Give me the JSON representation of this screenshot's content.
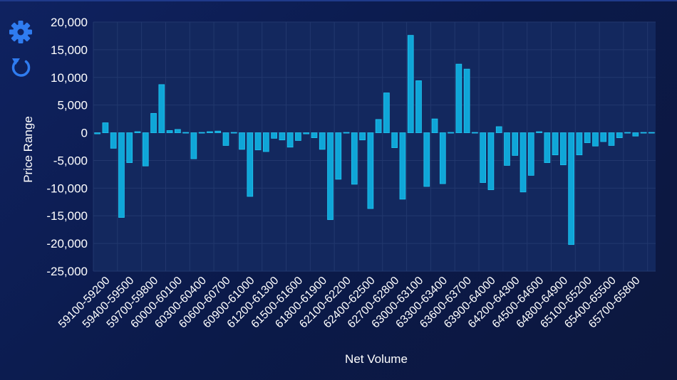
{
  "toolbar": {
    "settings_icon": "gear-icon",
    "reset_icon": "refresh-icon",
    "accent": "#2f7cf0"
  },
  "colors": {
    "bar_fill": "#0fa6d8",
    "bar_stroke": "#22c6f2",
    "plot_bg": "#13285e",
    "grid": "#22386e"
  },
  "chart_data": {
    "type": "bar",
    "title": "",
    "xlabel": "Net Volume",
    "ylabel": "Price Range",
    "ylim": [
      -25000,
      20000
    ],
    "yticks": [
      20000,
      15000,
      10000,
      5000,
      0,
      -5000,
      -10000,
      -15000,
      -20000,
      -25000
    ],
    "ytick_labels": [
      "20,000",
      "15,000",
      "10,000",
      "5,000",
      "0",
      "-5,000",
      "-10,000",
      "-15,000",
      "-20,000",
      "-25,000"
    ],
    "categories": [
      "59000-59100",
      "59100-59200",
      "59200-59300",
      "59300-59400",
      "59400-59500",
      "59500-59600",
      "59600-59700",
      "59700-59800",
      "59800-59900",
      "59900-60000",
      "60000-60100",
      "60100-60200",
      "60200-60300",
      "60300-60400",
      "60400-60500",
      "60500-60600",
      "60600-60700",
      "60700-60800",
      "60800-60900",
      "60900-61000",
      "61000-61100",
      "61100-61200",
      "61200-61300",
      "61300-61400",
      "61400-61500",
      "61500-61600",
      "61600-61700",
      "61700-61800",
      "61800-61900",
      "61900-62000",
      "62000-62100",
      "62100-62200",
      "62200-62300",
      "62300-62400",
      "62400-62500",
      "62500-62600",
      "62600-62700",
      "62700-62800",
      "62800-62900",
      "62900-63000",
      "63000-63100",
      "63100-63200",
      "63200-63300",
      "63300-63400",
      "63400-63500",
      "63500-63600",
      "63600-63700",
      "63700-63800",
      "63800-63900",
      "63900-64000",
      "64000-64100",
      "64100-64200",
      "64200-64300",
      "64300-64400",
      "64400-64500",
      "64500-64600",
      "64600-64700",
      "64700-64800",
      "64800-64900",
      "64900-65000",
      "65000-65100",
      "65100-65200",
      "65200-65300",
      "65300-65400",
      "65400-65500",
      "65500-65600",
      "65600-65700",
      "65700-65800",
      "65800-65900",
      "65900-66000"
    ],
    "visible_tick_labels": [
      "59100-59200",
      "59400-59500",
      "59700-59800",
      "60000-60100",
      "60300-60400",
      "60600-60700",
      "60900-61000",
      "61200-61300",
      "61500-61600",
      "61800-61900",
      "62100-62200",
      "62400-62500",
      "62700-62800",
      "63000-63100",
      "63300-63400",
      "63600-63700",
      "63900-64000",
      "64200-64300",
      "64500-64600",
      "64800-64900",
      "65100-65200",
      "65400-65500",
      "65700-65800"
    ],
    "values": [
      -200,
      1800,
      -2800,
      -15300,
      -5400,
      200,
      -6000,
      3500,
      8700,
      400,
      600,
      0,
      -4700,
      0,
      200,
      300,
      -2300,
      0,
      -3000,
      -11500,
      -3100,
      -3400,
      -1000,
      -1300,
      -2600,
      -1400,
      -200,
      -900,
      -3000,
      -15700,
      -8400,
      0,
      -9300,
      -1300,
      -13700,
      2400,
      7200,
      -2700,
      -12000,
      17600,
      9400,
      -9700,
      2500,
      -9200,
      0,
      12400,
      11500,
      0,
      -9000,
      -10300,
      1100,
      -5900,
      -4100,
      -10700,
      -7700,
      200,
      -5400,
      -4000,
      -5800,
      -20200,
      -4000,
      -1800,
      -2400,
      -1600,
      -2300,
      -900,
      0,
      -600,
      0,
      0
    ]
  }
}
